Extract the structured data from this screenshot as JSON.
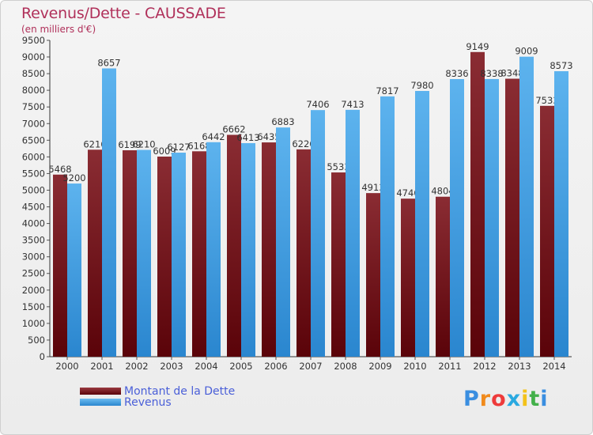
{
  "chart_data": {
    "type": "bar",
    "title": "Revenus/Dette - CAUSSADE",
    "subtitle": "(en milliers d'€)",
    "categories": [
      "2000",
      "2001",
      "2002",
      "2003",
      "2004",
      "2005",
      "2006",
      "2007",
      "2008",
      "2009",
      "2010",
      "2011",
      "2012",
      "2013",
      "2014"
    ],
    "series": [
      {
        "name": "Montant de la Dette",
        "color": "#6b0f16",
        "values": [
          5468,
          6216,
          6199,
          6009,
          6168,
          6662,
          6435,
          6226,
          5533,
          4913,
          4746,
          4804,
          9149,
          8348,
          7533
        ],
        "labels": [
          "5468",
          "6216",
          "6199",
          "6009",
          "6168",
          "6662",
          "6435",
          "6226",
          "5533",
          "4913",
          "4746",
          "4804",
          "9149",
          "8348",
          "7533"
        ]
      },
      {
        "name": "Revenus",
        "color": "#3d9ce0",
        "values": [
          5200,
          8657,
          6210,
          6127,
          6442,
          6413,
          6883,
          7406,
          7413,
          7817,
          7980,
          8336,
          8338,
          9009,
          8573
        ],
        "labels": [
          "5200",
          "8657",
          "6210",
          "6127",
          "6442",
          "6413",
          "6883",
          "7406",
          "7413",
          "7817",
          "7980",
          "8336",
          "8338",
          "9009",
          "8573"
        ]
      }
    ],
    "ylim": [
      0,
      9500
    ],
    "ytick_step": 500,
    "grid": false,
    "legend_position": "bottom-left"
  },
  "logo": {
    "text": "Proxiti",
    "letters": [
      "P",
      "r",
      "o",
      "x",
      "i",
      "t",
      "i"
    ],
    "colors": [
      "#3a8ee0",
      "#f08a1c",
      "#ee3b3b",
      "#2aa9e0",
      "#f3c21a",
      "#43b04a",
      "#3a8ee0"
    ]
  }
}
